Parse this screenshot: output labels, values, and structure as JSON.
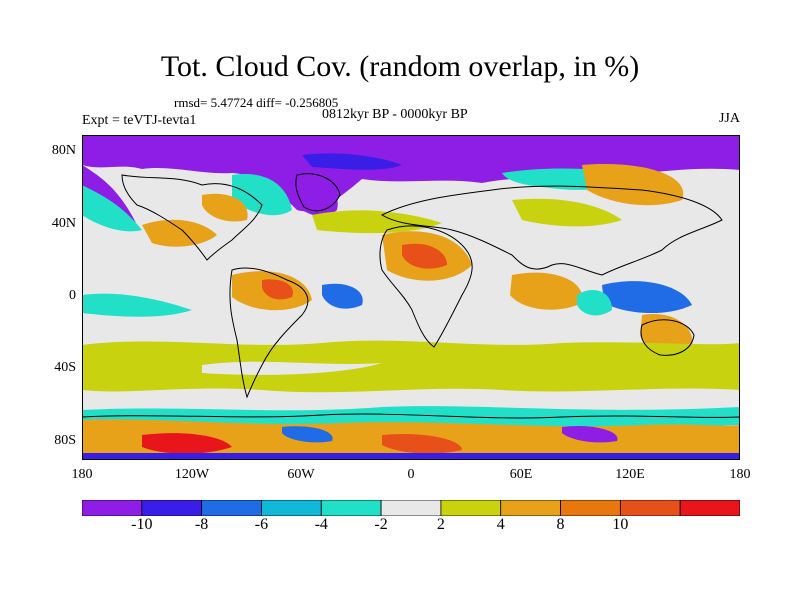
{
  "figure": {
    "title": "Tot. Cloud Cov. (random overlap, in %)",
    "stats": "rmsd= 5.47724 diff= -0.256805",
    "period": "0812kyr BP - 0000kyr BP",
    "experiment": "Expt = teVTJ-tevta1",
    "season": "JJA"
  },
  "chart_data": {
    "type": "heatmap",
    "x_tick_labels": [
      "180",
      "120W",
      "60W",
      "0",
      "60E",
      "120E",
      "180"
    ],
    "y_tick_labels": [
      "80N",
      "40N",
      "0",
      "40S",
      "80S"
    ],
    "x_range": [
      -180,
      180
    ],
    "y_range": [
      -90,
      90
    ],
    "colorbar": {
      "labels": [
        "-10",
        "-8",
        "-6",
        "-4",
        "-2",
        "2",
        "4",
        "8",
        "10"
      ],
      "colors": [
        "#8e1ee6",
        "#3a1ee8",
        "#1f6ce6",
        "#12b8d8",
        "#22e0c8",
        "#e8e8e8",
        "#c8d20e",
        "#e8a21a",
        "#e8780e",
        "#e8501a",
        "#e8161a"
      ]
    }
  }
}
